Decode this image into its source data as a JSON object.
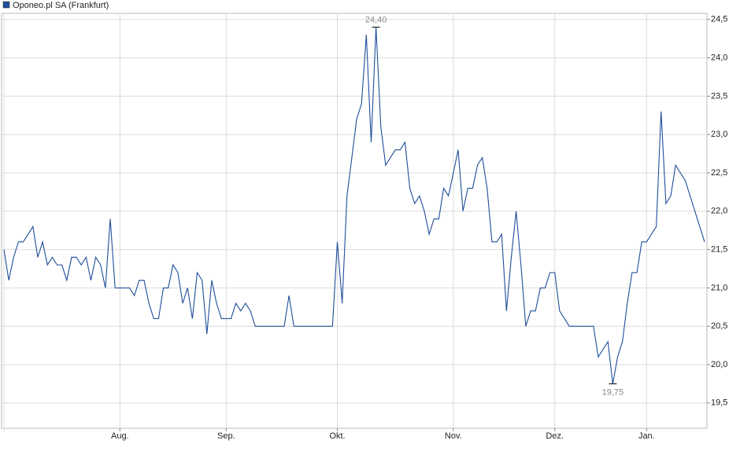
{
  "chart_data": {
    "type": "line",
    "categories": [
      null,
      null,
      null,
      null,
      null,
      null,
      null,
      null,
      null,
      null,
      null,
      null,
      null,
      null,
      null,
      null,
      null,
      null,
      null,
      null,
      null,
      null,
      null,
      null,
      "Aug.",
      null,
      null,
      null,
      null,
      null,
      null,
      null,
      null,
      null,
      null,
      null,
      null,
      null,
      null,
      null,
      null,
      null,
      null,
      null,
      null,
      null,
      "Sep.",
      null,
      null,
      null,
      null,
      null,
      null,
      null,
      null,
      null,
      null,
      null,
      null,
      null,
      null,
      null,
      null,
      null,
      null,
      null,
      null,
      null,
      null,
      "Okt.",
      null,
      null,
      null,
      null,
      null,
      null,
      null,
      null,
      null,
      null,
      null,
      null,
      null,
      null,
      null,
      null,
      null,
      null,
      null,
      null,
      null,
      null,
      null,
      "Nov.",
      null,
      null,
      null,
      null,
      null,
      null,
      null,
      null,
      null,
      null,
      null,
      null,
      null,
      null,
      null,
      null,
      null,
      null,
      null,
      null,
      "Dez.",
      null,
      null,
      null,
      null,
      null,
      null,
      null,
      null,
      null,
      null,
      null,
      null,
      null,
      null,
      null,
      null,
      null,
      null,
      "Jan.",
      null,
      null,
      null,
      null,
      null,
      null,
      null,
      null,
      null,
      null,
      null,
      null
    ],
    "series": [
      {
        "name": "Oponeo.pl SA (Frankfurt)",
        "color": "#1f4e9a",
        "values": [
          21.5,
          21.1,
          21.4,
          21.6,
          21.6,
          21.7,
          21.8,
          21.4,
          21.6,
          21.3,
          21.4,
          21.3,
          21.3,
          21.1,
          21.4,
          21.4,
          21.3,
          21.4,
          21.1,
          21.4,
          21.3,
          21.0,
          21.9,
          21.0,
          21.0,
          21.0,
          21.0,
          20.9,
          21.1,
          21.1,
          20.8,
          20.6,
          20.6,
          21.0,
          21.0,
          21.3,
          21.2,
          20.8,
          21.0,
          20.6,
          21.2,
          21.1,
          20.4,
          21.1,
          20.8,
          20.6,
          20.6,
          20.6,
          20.8,
          20.7,
          20.8,
          20.7,
          20.5,
          20.5,
          20.5,
          20.5,
          20.5,
          20.5,
          20.5,
          20.9,
          20.5,
          20.5,
          20.5,
          20.5,
          20.5,
          20.5,
          20.5,
          20.5,
          20.5,
          21.6,
          20.8,
          22.2,
          22.7,
          23.2,
          23.4,
          24.3,
          22.9,
          24.4,
          23.1,
          22.6,
          22.7,
          22.8,
          22.8,
          22.9,
          22.3,
          22.1,
          22.2,
          22.0,
          21.7,
          21.9,
          21.9,
          22.3,
          22.2,
          22.5,
          22.8,
          22.0,
          22.3,
          22.3,
          22.6,
          22.7,
          22.3,
          21.6,
          21.6,
          21.7,
          20.7,
          21.4,
          22.0,
          21.3,
          20.5,
          20.7,
          20.7,
          21.0,
          21.0,
          21.2,
          21.2,
          20.7,
          20.6,
          20.5,
          20.5,
          20.5,
          20.5,
          20.5,
          20.5,
          20.1,
          20.2,
          20.3,
          19.75,
          20.1,
          20.3,
          20.8,
          21.2,
          21.2,
          21.6,
          21.6,
          21.7,
          21.8,
          23.3,
          22.1,
          22.2,
          22.6,
          22.5,
          22.4,
          22.2,
          22.0,
          21.8,
          21.6
        ],
        "value_labels": [
          null,
          null,
          null,
          null,
          null,
          null,
          null,
          null,
          null,
          null,
          null,
          null,
          null,
          null,
          null,
          null,
          null,
          null,
          null,
          null,
          null,
          null,
          null,
          null,
          null,
          null,
          null,
          null,
          null,
          null,
          null,
          null,
          null,
          null,
          null,
          null,
          null,
          null,
          null,
          null,
          null,
          null,
          null,
          null,
          null,
          null,
          null,
          null,
          null,
          null,
          null,
          null,
          null,
          null,
          null,
          null,
          null,
          null,
          null,
          null,
          null,
          null,
          null,
          null,
          null,
          null,
          null,
          null,
          null,
          null,
          null,
          null,
          null,
          null,
          null,
          null,
          null,
          "24,40",
          null,
          null,
          null,
          null,
          null,
          null,
          null,
          null,
          null,
          null,
          null,
          null,
          null,
          null,
          null,
          null,
          null,
          null,
          null,
          null,
          null,
          null,
          null,
          null,
          null,
          null,
          null,
          null,
          null,
          null,
          null,
          null,
          null,
          null,
          null,
          null,
          null,
          null,
          null,
          null,
          null,
          null,
          null,
          null,
          null,
          null,
          null,
          null,
          "19,75",
          null,
          null,
          null,
          null,
          null,
          null,
          null,
          null,
          null,
          null,
          null,
          null,
          null,
          null,
          null,
          null,
          null,
          null,
          null
        ]
      }
    ],
    "ylim": [
      19.17,
      24.58
    ],
    "yticks": [
      {
        "value": 19.5,
        "label": "19,5"
      },
      {
        "value": 20,
        "label": "20,0"
      },
      {
        "value": 20.5,
        "label": "20,5"
      },
      {
        "value": 21,
        "label": "21,0"
      },
      {
        "value": 21.5,
        "label": "21,5"
      },
      {
        "value": 22,
        "label": "22,0"
      },
      {
        "value": 22.5,
        "label": "22,5"
      },
      {
        "value": 23,
        "label": "23,0"
      },
      {
        "value": 23.5,
        "label": "23,5"
      },
      {
        "value": 24,
        "label": "24,0"
      },
      {
        "value": 24.5,
        "label": "24,5"
      }
    ],
    "grid": true,
    "legend": "top-left"
  }
}
